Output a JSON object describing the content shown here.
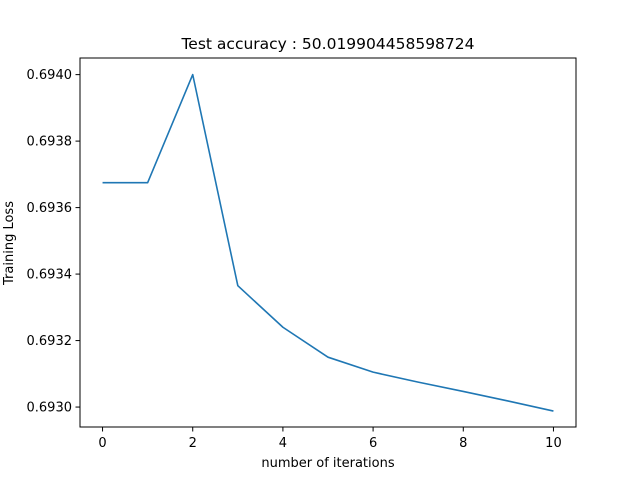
{
  "chart_data": {
    "type": "line",
    "title": "Test accuracy : 50.019904458598724",
    "xlabel": "number of iterations",
    "ylabel": "Training Loss",
    "xlim": [
      -0.5,
      10.5
    ],
    "ylim": [
      0.69294,
      0.69405
    ],
    "xticks": [
      0,
      2,
      4,
      6,
      8,
      10
    ],
    "yticks": [
      0.693,
      0.6932,
      0.6934,
      0.6936,
      0.6938,
      0.694
    ],
    "ytick_labels": [
      "0.6930",
      "0.6932",
      "0.6934",
      "0.6936",
      "0.6938",
      "0.6940"
    ],
    "grid": false,
    "series": [
      {
        "color": "#1f77b4",
        "x": [
          0,
          1,
          2,
          3,
          4,
          5,
          6,
          7,
          8,
          9,
          10
        ],
        "y": [
          0.693675,
          0.693675,
          0.694,
          0.693365,
          0.69324,
          0.69315,
          0.693105,
          0.693075,
          0.693047,
          0.693018,
          0.692988
        ]
      }
    ]
  }
}
